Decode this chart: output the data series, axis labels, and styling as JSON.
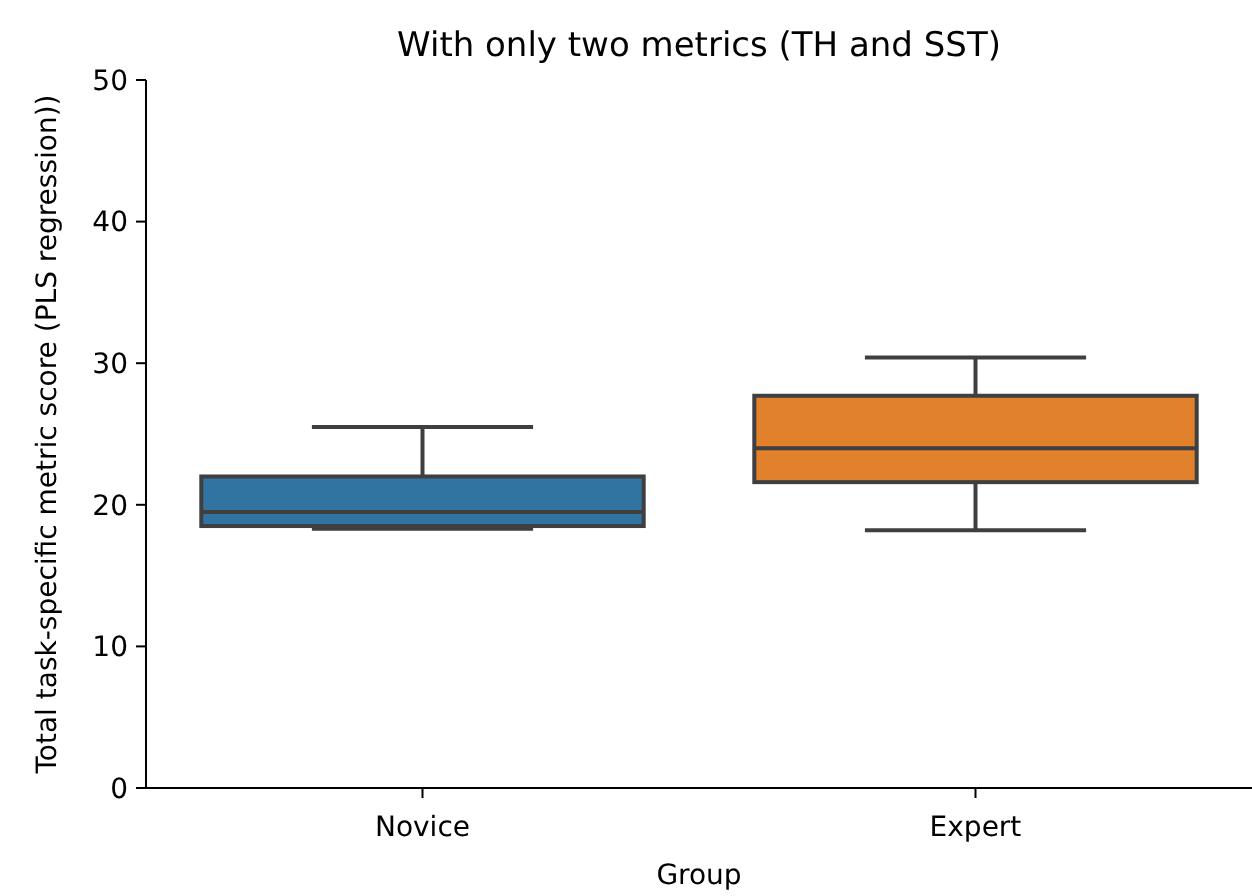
{
  "chart_data": {
    "type": "box",
    "title": "With only two metrics (TH and SST)",
    "xlabel": "Group",
    "ylabel": "Total task-specific metric score (PLS regression))",
    "categories": [
      "Novice",
      "Expert"
    ],
    "colors": [
      "#3274a1",
      "#e1812c"
    ],
    "boxes": [
      {
        "low": 18.3,
        "q1": 18.5,
        "median": 19.5,
        "q3": 22,
        "high": 25.5
      },
      {
        "low": 18.2,
        "q1": 21.6,
        "median": 24,
        "q3": 27.7,
        "high": 30.4
      }
    ],
    "ylim": [
      0,
      50
    ],
    "yticks": [
      0,
      10,
      20,
      30,
      40,
      50
    ]
  }
}
